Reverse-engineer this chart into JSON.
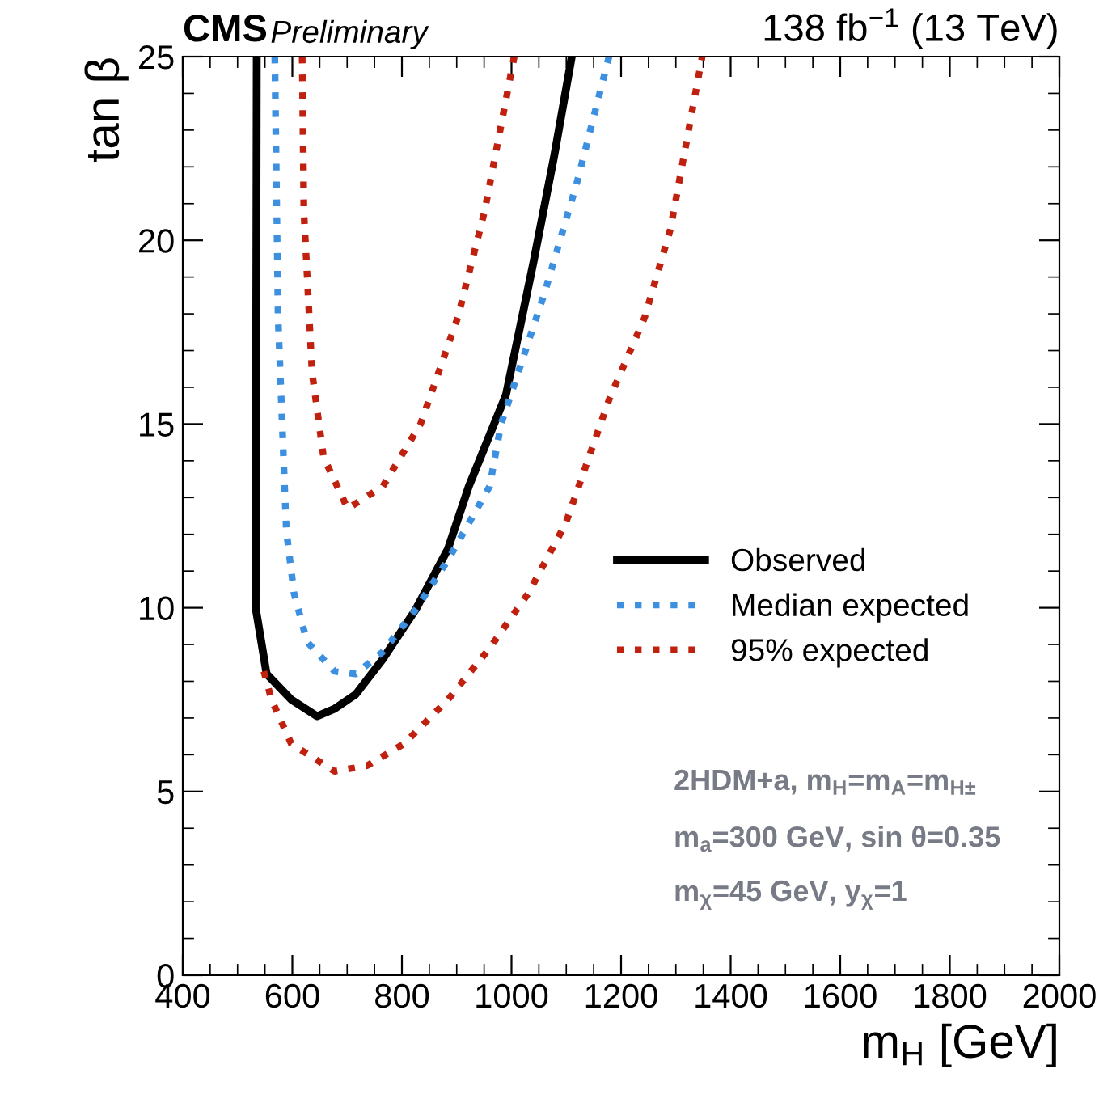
{
  "chart_data": {
    "type": "line",
    "title": "CMS",
    "subtitle": "Preliminary",
    "xlabel": "m$_{H}$ [GeV]",
    "ylabel": "tan β",
    "annotations": [
      "138 fb$^{−1}$ (13 TeV)",
      "2HDM+a, m$_{H}$=m$_{A}$=m$_{H±}$",
      "m$_{a}$=300 GeV, sin θ=0.35",
      "m$_{χ}$=45 GeV, y$_{χ}$=1"
    ],
    "xlim": [
      400,
      2000
    ],
    "ylim": [
      0,
      25
    ],
    "xticks": [
      400,
      600,
      800,
      1000,
      1200,
      1400,
      1600,
      1800,
      2000
    ],
    "yticks": [
      0,
      5,
      10,
      15,
      20,
      25
    ],
    "grid": false,
    "legend": "right",
    "marker": "none",
    "series": [
      {
        "name": "Observed",
        "color": "#000000",
        "line_style": "solid",
        "x": [
          535,
          534,
          533,
          553,
          598,
          645,
          677,
          716,
          765,
          825,
          884,
          922,
          990,
          1040,
          1078,
          1110
        ],
        "values": [
          25,
          17,
          10,
          8.2,
          7.5,
          7.05,
          7.25,
          7.65,
          8.6,
          9.95,
          11.6,
          13.3,
          15.8,
          19.4,
          22.3,
          25
        ]
      },
      {
        "name": "Median expected",
        "color": "#3d8fe0",
        "line_style": "dotted",
        "x": [
          568,
          574,
          589,
          603,
          627,
          677,
          716,
          765,
          825,
          884,
          960,
          981,
          1061,
          1120,
          1178
        ],
        "values": [
          25,
          17.9,
          12.1,
          10.4,
          9.07,
          8.27,
          8.2,
          8.8,
          9.95,
          11.3,
          13.3,
          15.0,
          18.6,
          21.6,
          25
        ]
      },
      {
        "name": "95% expected",
        "color": "#c0200e",
        "line_style": "dotted",
        "x": [
          618,
          621,
          636,
          657,
          701,
          765,
          834,
          902,
          951,
          1005
        ],
        "values": [
          25,
          20.8,
          16.4,
          14.1,
          12.7,
          13.3,
          15.0,
          17.9,
          20.8,
          25
        ]
      },
      {
        "color": "#c0200e",
        "line_style": "dotted",
        "x": [
          548,
          562,
          598,
          677,
          736,
          804,
          884,
          960,
          1031,
          1099,
          1179,
          1243,
          1290,
          1348
        ],
        "values": [
          8.27,
          7.5,
          6.3,
          5.55,
          5.7,
          6.3,
          7.5,
          8.9,
          10.4,
          12.3,
          15.7,
          17.9,
          20.3,
          25
        ]
      }
    ]
  }
}
